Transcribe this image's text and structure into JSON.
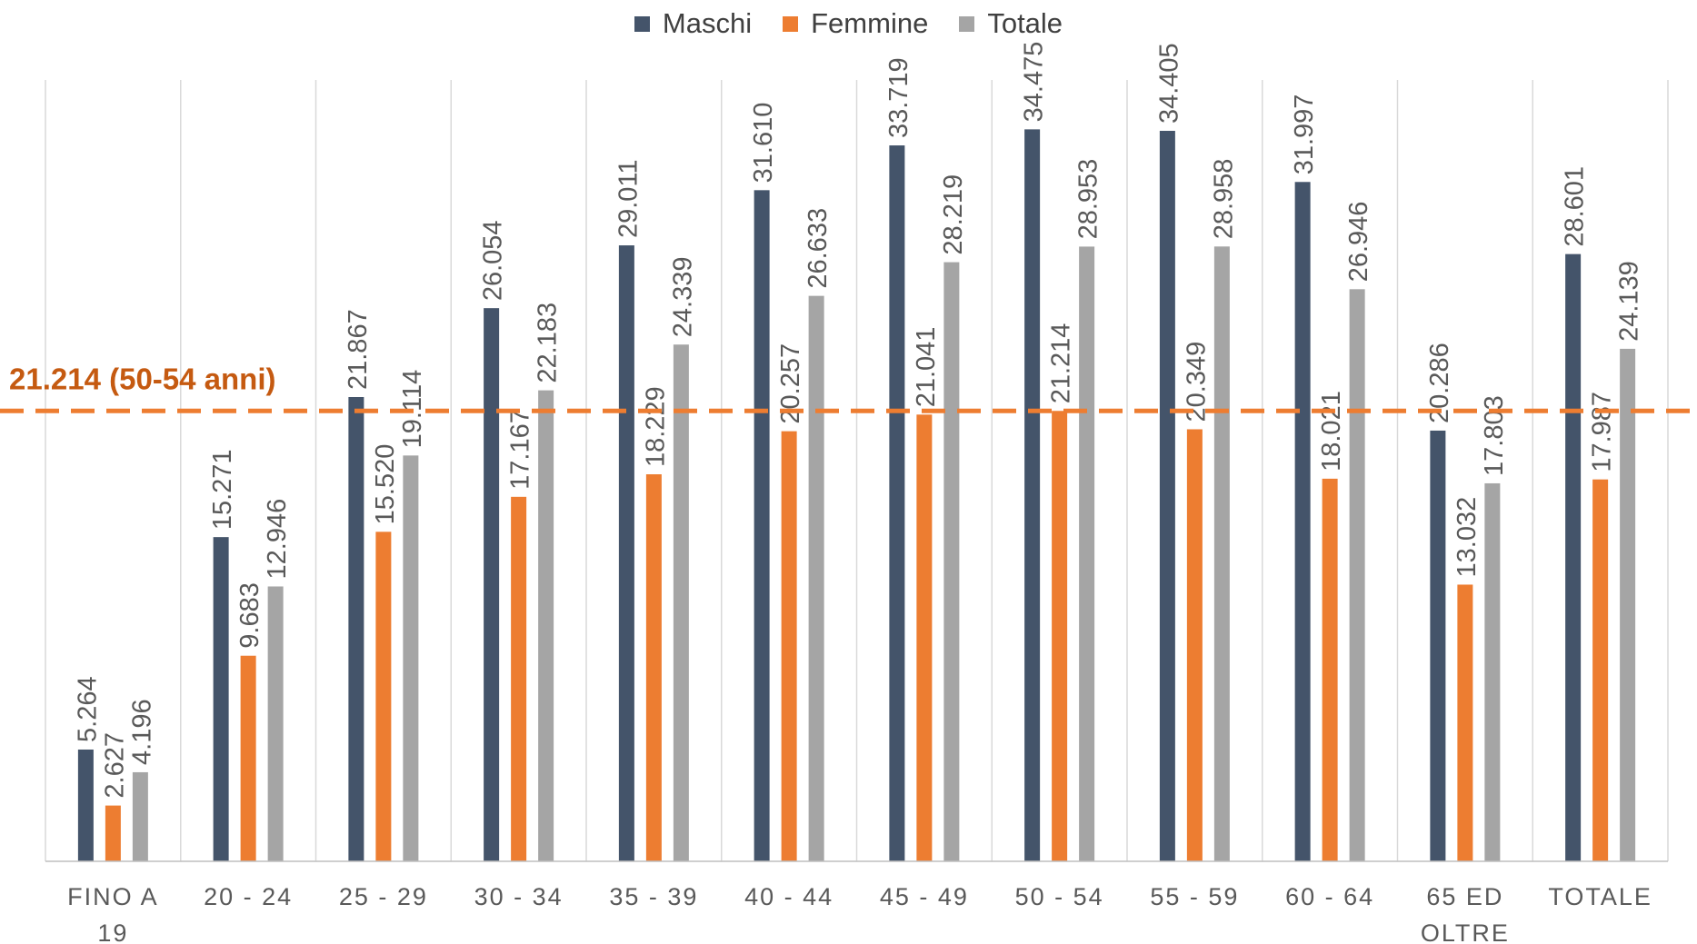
{
  "chart_data": {
    "type": "bar",
    "categories": [
      "FINO A 19",
      "20 - 24",
      "25 - 29",
      "30 - 34",
      "35 - 39",
      "40 - 44",
      "45 - 49",
      "50 - 54",
      "55 - 59",
      "60 - 64",
      "65 ED OLTRE",
      "TOTALE"
    ],
    "category_lines": [
      [
        "FINO  A",
        "19"
      ],
      [
        "20  - 24"
      ],
      [
        "25  - 29"
      ],
      [
        "30  - 34"
      ],
      [
        "35  - 39"
      ],
      [
        "40  - 44"
      ],
      [
        "45  - 49"
      ],
      [
        "50  - 54"
      ],
      [
        "55  - 59"
      ],
      [
        "60  - 64"
      ],
      [
        "65 ED",
        "OLTRE"
      ],
      [
        "TOTALE"
      ]
    ],
    "series": [
      {
        "name": "Maschi",
        "color": "#44546A",
        "values": [
          5264,
          15271,
          21867,
          26054,
          29011,
          31610,
          33719,
          34475,
          34405,
          31997,
          20286,
          28601
        ],
        "labels": [
          "5.264",
          "15.271",
          "21.867",
          "26.054",
          "29.011",
          "31.610",
          "33.719",
          "34.475",
          "34.405",
          "31.997",
          "20.286",
          "28.601"
        ]
      },
      {
        "name": "Femmine",
        "color": "#ED7D31",
        "values": [
          2627,
          9683,
          15520,
          17167,
          18229,
          20257,
          21041,
          21214,
          20349,
          18021,
          13032,
          17987
        ],
        "labels": [
          "2.627",
          "9.683",
          "15.520",
          "17.167",
          "18.229",
          "20.257",
          "21.041",
          "21.214",
          "20.349",
          "18.021",
          "13.032",
          "17.987"
        ]
      },
      {
        "name": "Totale",
        "color": "#A5A5A5",
        "values": [
          4196,
          12946,
          19114,
          22183,
          24339,
          26633,
          28219,
          28953,
          28958,
          26946,
          17803,
          24139
        ],
        "labels": [
          "4.196",
          "12.946",
          "19.114",
          "22.183",
          "24.339",
          "26.633",
          "28.219",
          "28.953",
          "28.958",
          "26.946",
          "17.803",
          "24.139"
        ]
      }
    ],
    "reference_line": {
      "value": 21214,
      "label": "21.214 (50-54 anni)",
      "color": "#ED7D31",
      "text_color": "#C55A11"
    },
    "ylim": [
      0,
      38000
    ],
    "legend_position": "top",
    "grid": "vertical category separators"
  }
}
